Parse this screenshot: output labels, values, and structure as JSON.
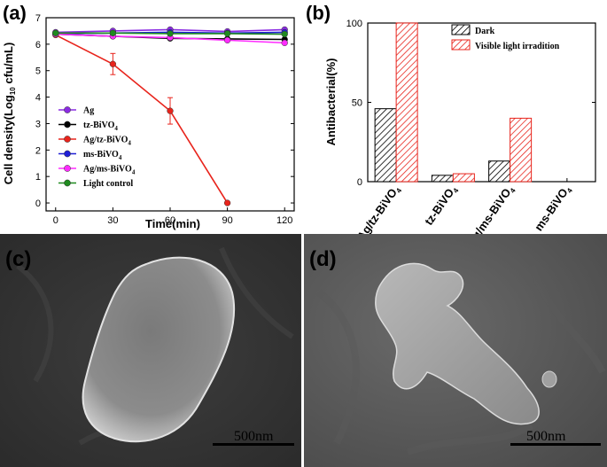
{
  "chart_data": [
    {
      "type": "line",
      "panel_label": "(a)",
      "x": [
        0,
        30,
        60,
        90,
        120
      ],
      "xticks": [
        "0",
        "30",
        "60",
        "90",
        "120"
      ],
      "yticks": [
        "0",
        "1",
        "2",
        "3",
        "4",
        "5",
        "6",
        "7"
      ],
      "xlim": [
        -5,
        125
      ],
      "ylim": [
        -0.3,
        7
      ],
      "xlabel": "Time(min)",
      "ylabel_parts": {
        "pre": "Cell density(Log",
        "sub": "10",
        "post": " cfu/mL)"
      },
      "legend_position": "lower-left",
      "series": [
        {
          "name": "Ag",
          "name_main": "Ag",
          "name_sub": "",
          "color": "#8b2be2",
          "values": [
            6.45,
            6.5,
            6.55,
            6.48,
            6.55
          ]
        },
        {
          "name": "tz-BiVO4",
          "name_main": "tz-BiVO",
          "name_sub": "4",
          "color": "#000000",
          "values": [
            6.38,
            6.3,
            6.22,
            6.2,
            6.18
          ]
        },
        {
          "name": "Ag/tz-BiVO4",
          "name_main": "Ag/tz-BiVO",
          "name_sub": "4",
          "color": "#e8241c",
          "values": [
            6.35,
            5.25,
            3.48,
            0.0,
            null
          ],
          "errors": [
            0.05,
            0.4,
            0.5,
            0.0,
            null
          ]
        },
        {
          "name": "ms-BiVO4",
          "name_main": "ms-BiVO",
          "name_sub": "4",
          "color": "#1f1fd6",
          "values": [
            6.4,
            6.42,
            6.45,
            6.42,
            6.45
          ]
        },
        {
          "name": "Ag/ms-BiVO4",
          "name_main": "Ag/ms-BiVO",
          "name_sub": "4",
          "color": "#ff2bff",
          "values": [
            6.38,
            6.3,
            6.25,
            6.15,
            6.05
          ]
        },
        {
          "name": "Light control",
          "name_main": "Light control",
          "name_sub": "",
          "color": "#1f8a1f",
          "values": [
            6.42,
            6.42,
            6.4,
            6.4,
            6.38
          ]
        }
      ]
    },
    {
      "type": "bar",
      "panel_label": "(b)",
      "categories": [
        {
          "main": "Ag/tz-BiVO",
          "sub": "4"
        },
        {
          "main": "tz-BiVO",
          "sub": "4"
        },
        {
          "main": "Ag/ms-BiVO",
          "sub": "4"
        },
        {
          "main": "ms-BiVO",
          "sub": "4"
        }
      ],
      "ylabel": "Antibacterial(%)",
      "yticks": [
        "0",
        "50",
        "100"
      ],
      "ylim": [
        0,
        100
      ],
      "legend_position": "top-right",
      "series": [
        {
          "name": "Dark",
          "color": "#000000",
          "pattern": "hatch",
          "values": [
            46,
            4,
            13,
            0
          ]
        },
        {
          "name": "Visible light irradition",
          "color": "#e8241c",
          "pattern": "hatch",
          "values": [
            100,
            5,
            40,
            0
          ]
        }
      ]
    }
  ],
  "images": {
    "c": {
      "panel_label": "(c)",
      "scale_bar_label": "500nm"
    },
    "d": {
      "panel_label": "(d)",
      "scale_bar_label": "500nm"
    }
  }
}
